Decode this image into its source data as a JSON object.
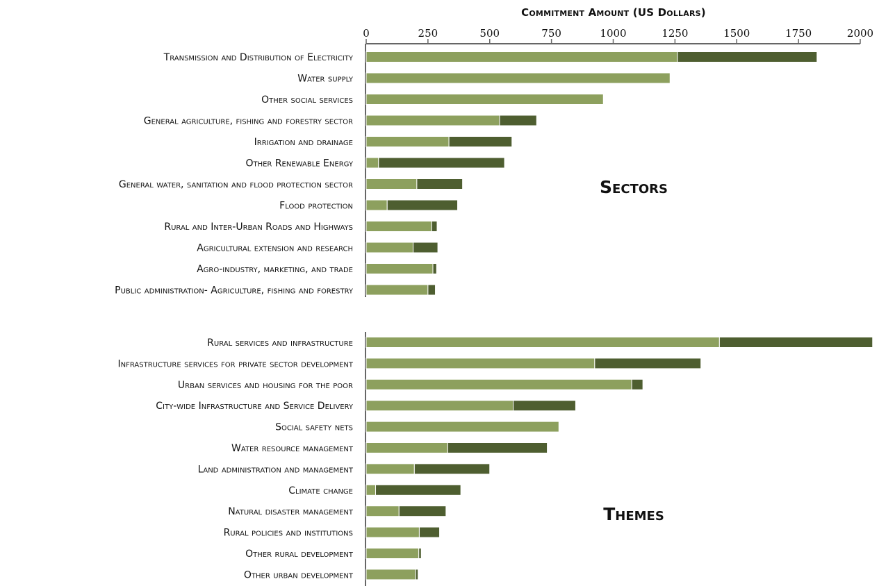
{
  "chart_data": {
    "type": "bar",
    "orientation": "horizontal",
    "stacked": true,
    "xlabel": "Commitment Amount (US Dollars)",
    "xlim": [
      0,
      2000
    ],
    "xticks": [
      0,
      250,
      500,
      750,
      1000,
      1250,
      1500,
      1750,
      2000
    ],
    "grid": false,
    "colors": [
      "#8da05e",
      "#4e5e30"
    ],
    "panels": [
      {
        "title": "Sectors",
        "categories": [
          "Transmission and Distribution of Electricity",
          "Water supply",
          "Other social services",
          "General agriculture, fishing and forestry sector",
          "Irrigation and drainage",
          "Other Renewable Energy",
          "General water, sanitation and flood protection sector",
          "Flood protection",
          "Rural and Inter-Urban Roads and Highways",
          "Agricultural extension and research",
          "Agro-industry, marketing, and trade",
          "Public administration- Agriculture, fishing and forestry"
        ],
        "series": [
          {
            "values": [
              1260,
              1230,
              960,
              540,
              335,
              50,
              205,
              85,
              265,
              190,
              270,
              250
            ]
          },
          {
            "values": [
              565,
              0,
              0,
              150,
              255,
              510,
              185,
              285,
              22,
              100,
              15,
              30
            ]
          }
        ]
      },
      {
        "title": "Themes",
        "categories": [
          "Rural services and infrastructure",
          "Infrastructure services for private sector development",
          "Urban services and housing for the poor",
          "City-wide Infrastructure and Service Delivery",
          "Social safety nets",
          "Water resource management",
          "Land administration and management",
          "Climate change",
          "Natural disaster management",
          "Rural policies and institutions",
          "Other rural development",
          "Other urban development"
        ],
        "series": [
          {
            "values": [
              1430,
              925,
              1075,
              595,
              780,
              330,
              195,
              38,
              133,
              215,
              213,
              200
            ]
          },
          {
            "values": [
              620,
              430,
              45,
              253,
              0,
              403,
              305,
              345,
              190,
              82,
              10,
              10
            ]
          }
        ]
      }
    ]
  }
}
